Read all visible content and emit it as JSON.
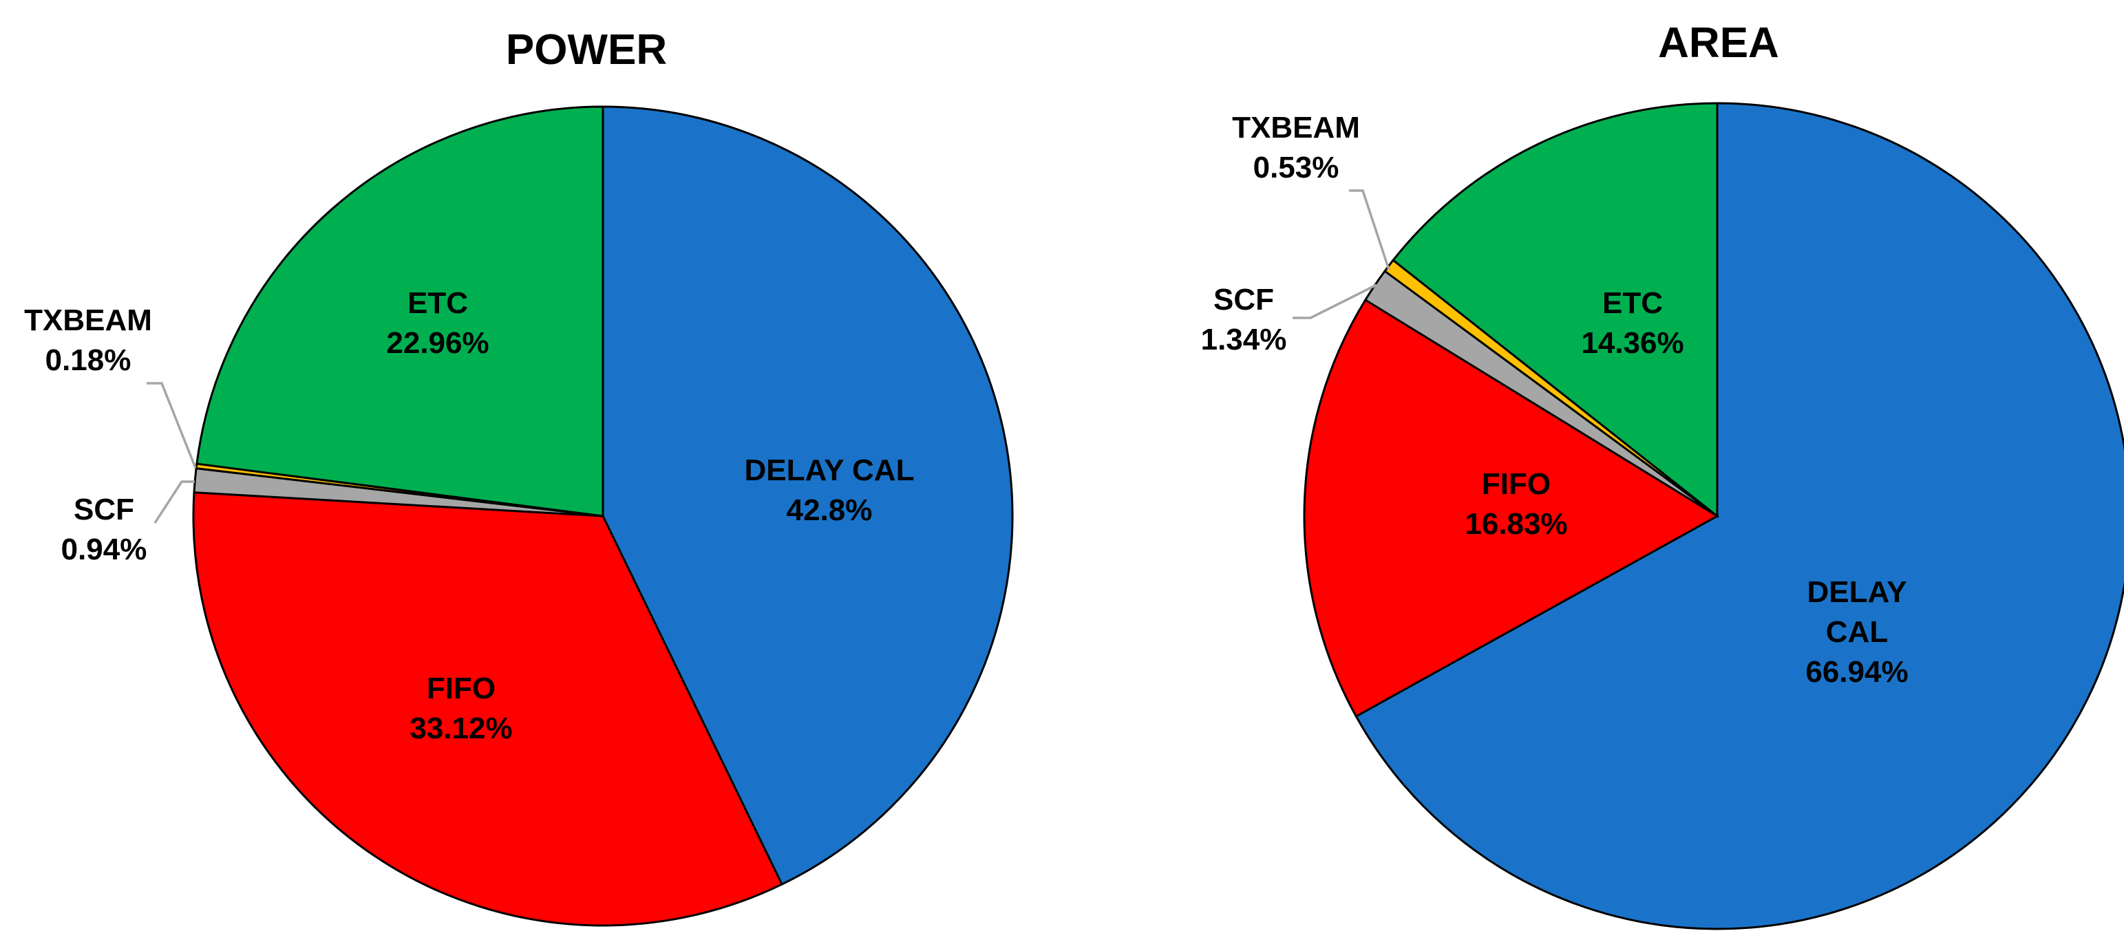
{
  "chart_data": [
    {
      "type": "pie",
      "title": "POWER",
      "start_angle_deg": 0,
      "direction": "clockwise",
      "slices": [
        {
          "name": "DELAY CAL",
          "value": 42.8,
          "value_label": "42.8%",
          "color": "#1a73c8",
          "label_lines": [
            "DELAY CAL"
          ],
          "label_position": "inside"
        },
        {
          "name": "FIFO",
          "value": 33.12,
          "value_label": "33.12%",
          "color": "#ff0000",
          "label_lines": [
            "FIFO"
          ],
          "label_position": "inside"
        },
        {
          "name": "SCF",
          "value": 0.94,
          "value_label": "0.94%",
          "color": "#a6a6a6",
          "label_lines": [
            "SCF"
          ],
          "label_position": "outside"
        },
        {
          "name": "TXBEAM",
          "value": 0.18,
          "value_label": "0.18%",
          "color": "#ffc000",
          "label_lines": [
            "TXBEAM"
          ],
          "label_position": "outside"
        },
        {
          "name": "ETC",
          "value": 22.96,
          "value_label": "22.96%",
          "color": "#00b050",
          "label_lines": [
            "ETC"
          ],
          "label_position": "inside"
        }
      ]
    },
    {
      "type": "pie",
      "title": "AREA",
      "start_angle_deg": 0,
      "direction": "clockwise",
      "slices": [
        {
          "name": "DELAY CAL",
          "value": 66.94,
          "value_label": "66.94%",
          "color": "#1a73c8",
          "label_lines": [
            "DELAY",
            "CAL"
          ],
          "label_position": "inside"
        },
        {
          "name": "FIFO",
          "value": 16.83,
          "value_label": "16.83%",
          "color": "#ff0000",
          "label_lines": [
            "FIFO"
          ],
          "label_position": "inside"
        },
        {
          "name": "SCF",
          "value": 1.34,
          "value_label": "1.34%",
          "color": "#a6a6a6",
          "label_lines": [
            "SCF"
          ],
          "label_position": "outside"
        },
        {
          "name": "TXBEAM",
          "value": 0.53,
          "value_label": "0.53%",
          "color": "#ffc000",
          "label_lines": [
            "TXBEAM"
          ],
          "label_position": "outside"
        },
        {
          "name": "ETC",
          "value": 14.36,
          "value_label": "14.36%",
          "color": "#00b050",
          "label_lines": [
            "ETC"
          ],
          "label_position": "inside"
        }
      ]
    }
  ]
}
